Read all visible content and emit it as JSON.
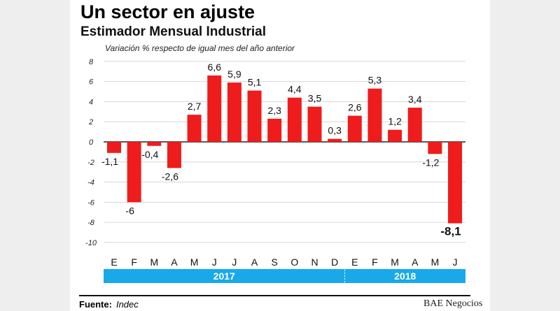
{
  "header": {
    "title": "Un sector en ajuste",
    "subtitle": "Estimador Mensual Industrial"
  },
  "footer": {
    "source_label": "Fuente:",
    "source_value": "Indec",
    "brand": "BAE Negocios"
  },
  "colors": {
    "bar": "#ee1c1c",
    "year_band": "#19a9e8"
  },
  "chart_data": {
    "type": "bar",
    "title": "Estimador Mensual Industrial",
    "subtitle": "Variación % respecto de igual mes del año anterior",
    "categories": [
      "E",
      "F",
      "M",
      "A",
      "M",
      "J",
      "J",
      "A",
      "S",
      "O",
      "N",
      "D",
      "E",
      "F",
      "M",
      "A",
      "M",
      "J"
    ],
    "values": [
      -1.1,
      -6,
      -0.4,
      -2.6,
      2.7,
      6.6,
      5.9,
      5.1,
      2.3,
      4.4,
      3.5,
      0.3,
      2.6,
      5.3,
      1.2,
      3.4,
      -1.2,
      -8.1
    ],
    "labels": [
      "-1,1",
      "-6",
      "-0,4",
      "-2,6",
      "2,7",
      "6,6",
      "5,9",
      "5,1",
      "2,3",
      "4,4",
      "3,5",
      "0,3",
      "2,6",
      "5,3",
      "1,2",
      "3,4",
      "-1,2",
      "-8,1"
    ],
    "years": [
      {
        "label": "2017",
        "months": 12
      },
      {
        "label": "2018",
        "months": 6
      }
    ],
    "yticks": [
      "8",
      "6",
      "4",
      "2",
      "0",
      "-2",
      "-4",
      "-6",
      "-8",
      "-10"
    ],
    "ytick_values": [
      8,
      6,
      4,
      2,
      0,
      -2,
      -4,
      -6,
      -8,
      -10
    ],
    "ylim": [
      -10,
      8
    ],
    "xlabel": "",
    "ylabel": ""
  }
}
